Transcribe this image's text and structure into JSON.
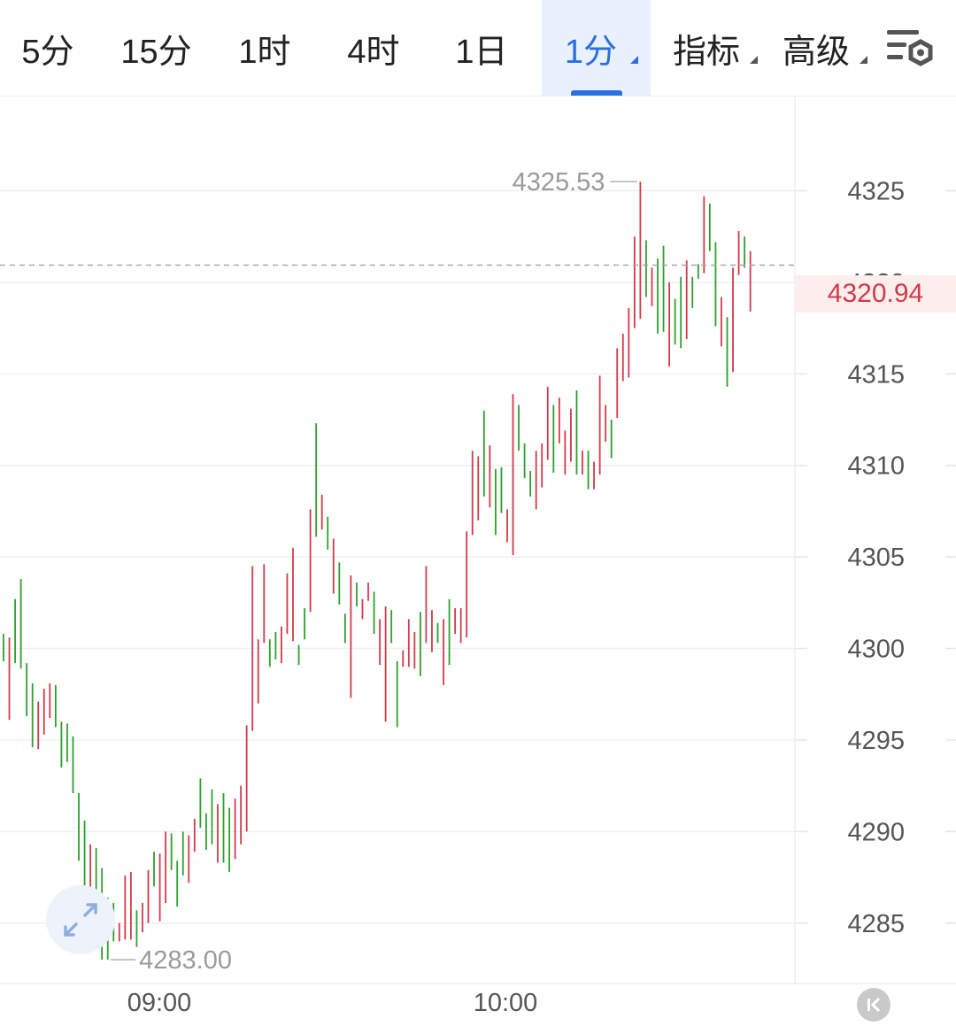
{
  "tabs": [
    {
      "label": "5分",
      "active": false
    },
    {
      "label": "15分",
      "active": false
    },
    {
      "label": "1时",
      "active": false
    },
    {
      "label": "4时",
      "active": false
    },
    {
      "label": "1日",
      "active": false
    },
    {
      "label": "1分",
      "active": true,
      "dropdown": true
    },
    {
      "label": "指标",
      "active": false,
      "dropdown": true
    },
    {
      "label": "高级",
      "active": false,
      "dropdown": true
    }
  ],
  "toolbar": {
    "settings_icon": "chart-settings-icon"
  },
  "colors": {
    "up": "#d23a4a",
    "down": "#2ca02c",
    "accent": "#2b6fe0"
  },
  "chart_data": {
    "type": "ohlc",
    "y_ticks": [
      "4285",
      "4290",
      "4295",
      "4300",
      "4305",
      "4310",
      "4315",
      "4320",
      "4325"
    ],
    "ylim": [
      4281.7,
      4330.2
    ],
    "x_ticks": [
      "09:00",
      "10:00"
    ],
    "current_price": "4320.94",
    "high_label": "4325.53",
    "low_label": "4283.00",
    "grid": true,
    "series": [
      {
        "h": 4300.8,
        "l": 4299.3,
        "up": false
      },
      {
        "h": 4300.6,
        "l": 4296.1,
        "up": true
      },
      {
        "h": 4302.7,
        "l": 4299.2,
        "up": false
      },
      {
        "h": 4303.8,
        "l": 4298.9,
        "up": false
      },
      {
        "h": 4299.2,
        "l": 4296.3,
        "up": false
      },
      {
        "h": 4298.1,
        "l": 4294.6,
        "up": false
      },
      {
        "h": 4297.1,
        "l": 4294.5,
        "up": true
      },
      {
        "h": 4297.8,
        "l": 4295.3,
        "up": true
      },
      {
        "h": 4298.1,
        "l": 4296.2,
        "up": true
      },
      {
        "h": 4298.0,
        "l": 4295.7,
        "up": false
      },
      {
        "h": 4296.0,
        "l": 4293.5,
        "up": false
      },
      {
        "h": 4295.9,
        "l": 4293.8,
        "up": false
      },
      {
        "h": 4295.2,
        "l": 4292.1,
        "up": false
      },
      {
        "h": 4292.1,
        "l": 4288.4,
        "up": false
      },
      {
        "h": 4290.6,
        "l": 4286.9,
        "up": false
      },
      {
        "h": 4289.3,
        "l": 4286.9,
        "up": true
      },
      {
        "h": 4289.1,
        "l": 4286.5,
        "up": false
      },
      {
        "h": 4288.0,
        "l": 4283.0,
        "up": false
      },
      {
        "h": 4286.4,
        "l": 4283.0,
        "up": false
      },
      {
        "h": 4286.1,
        "l": 4284.0,
        "up": false
      },
      {
        "h": 4285.0,
        "l": 4284.0,
        "up": true
      },
      {
        "h": 4287.6,
        "l": 4284.1,
        "up": true
      },
      {
        "h": 4287.8,
        "l": 4284.1,
        "up": true
      },
      {
        "h": 4285.7,
        "l": 4283.7,
        "up": false
      },
      {
        "h": 4286.1,
        "l": 4284.5,
        "up": true
      },
      {
        "h": 4287.9,
        "l": 4285.0,
        "up": true
      },
      {
        "h": 4288.9,
        "l": 4287.0,
        "up": false
      },
      {
        "h": 4288.8,
        "l": 4285.1,
        "up": true
      },
      {
        "h": 4290.0,
        "l": 4286.1,
        "up": true
      },
      {
        "h": 4289.9,
        "l": 4287.9,
        "up": false
      },
      {
        "h": 4288.4,
        "l": 4285.9,
        "up": false
      },
      {
        "h": 4290.0,
        "l": 4287.6,
        "up": false
      },
      {
        "h": 4289.8,
        "l": 4287.2,
        "up": true
      },
      {
        "h": 4290.7,
        "l": 4288.9,
        "up": true
      },
      {
        "h": 4292.9,
        "l": 4290.2,
        "up": false
      },
      {
        "h": 4291.0,
        "l": 4289.0,
        "up": false
      },
      {
        "h": 4292.3,
        "l": 4289.3,
        "up": false
      },
      {
        "h": 4291.5,
        "l": 4288.3,
        "up": true
      },
      {
        "h": 4292.1,
        "l": 4288.3,
        "up": false
      },
      {
        "h": 4291.3,
        "l": 4287.8,
        "up": false
      },
      {
        "h": 4291.8,
        "l": 4288.5,
        "up": true
      },
      {
        "h": 4292.5,
        "l": 4289.3,
        "up": true
      },
      {
        "h": 4295.8,
        "l": 4290.0,
        "up": true
      },
      {
        "h": 4304.5,
        "l": 4295.5,
        "up": true
      },
      {
        "h": 4300.5,
        "l": 4297.0,
        "up": true
      },
      {
        "h": 4304.6,
        "l": 4300.3,
        "up": true
      },
      {
        "h": 4300.5,
        "l": 4299.0,
        "up": false
      },
      {
        "h": 4300.9,
        "l": 4299.4,
        "up": false
      },
      {
        "h": 4301.2,
        "l": 4299.2,
        "up": true
      },
      {
        "h": 4304.1,
        "l": 4300.8,
        "up": true
      },
      {
        "h": 4305.5,
        "l": 4300.4,
        "up": true
      },
      {
        "h": 4300.2,
        "l": 4299.1,
        "up": false
      },
      {
        "h": 4302.2,
        "l": 4300.5,
        "up": false
      },
      {
        "h": 4307.6,
        "l": 4302.0,
        "up": true
      },
      {
        "h": 4312.3,
        "l": 4306.1,
        "up": false
      },
      {
        "h": 4308.4,
        "l": 4306.5,
        "up": true
      },
      {
        "h": 4307.2,
        "l": 4305.4,
        "up": false
      },
      {
        "h": 4306.0,
        "l": 4303.0,
        "up": true
      },
      {
        "h": 4304.7,
        "l": 4302.4,
        "up": false
      },
      {
        "h": 4301.9,
        "l": 4300.3,
        "up": false
      },
      {
        "h": 4304.0,
        "l": 4297.3,
        "up": true
      },
      {
        "h": 4303.6,
        "l": 4302.3,
        "up": false
      },
      {
        "h": 4302.7,
        "l": 4301.6,
        "up": true
      },
      {
        "h": 4303.6,
        "l": 4302.6,
        "up": true
      },
      {
        "h": 4303.1,
        "l": 4300.8,
        "up": false
      },
      {
        "h": 4301.6,
        "l": 4299.1,
        "up": true
      },
      {
        "h": 4302.3,
        "l": 4296.0,
        "up": true
      },
      {
        "h": 4302.1,
        "l": 4300.3,
        "up": false
      },
      {
        "h": 4299.3,
        "l": 4295.7,
        "up": false
      },
      {
        "h": 4299.9,
        "l": 4299.0,
        "up": true
      },
      {
        "h": 4301.6,
        "l": 4299.0,
        "up": true
      },
      {
        "h": 4300.9,
        "l": 4298.9,
        "up": true
      },
      {
        "h": 4302.0,
        "l": 4298.5,
        "up": false
      },
      {
        "h": 4304.5,
        "l": 4300.3,
        "up": true
      },
      {
        "h": 4302.1,
        "l": 4299.8,
        "up": true
      },
      {
        "h": 4301.4,
        "l": 4300.3,
        "up": false
      },
      {
        "h": 4301.6,
        "l": 4298.0,
        "up": true
      },
      {
        "h": 4302.7,
        "l": 4299.1,
        "up": false
      },
      {
        "h": 4302.2,
        "l": 4300.8,
        "up": true
      },
      {
        "h": 4302.2,
        "l": 4300.3,
        "up": true
      },
      {
        "h": 4306.4,
        "l": 4300.6,
        "up": true
      },
      {
        "h": 4310.8,
        "l": 4306.2,
        "up": true
      },
      {
        "h": 4310.5,
        "l": 4307.0,
        "up": true
      },
      {
        "h": 4313.0,
        "l": 4308.3,
        "up": false
      },
      {
        "h": 4311.1,
        "l": 4307.7,
        "up": true
      },
      {
        "h": 4309.8,
        "l": 4306.2,
        "up": false
      },
      {
        "h": 4309.9,
        "l": 4307.4,
        "up": false
      },
      {
        "h": 4307.6,
        "l": 4305.8,
        "up": true
      },
      {
        "h": 4313.9,
        "l": 4305.1,
        "up": true
      },
      {
        "h": 4313.3,
        "l": 4310.8,
        "up": false
      },
      {
        "h": 4311.2,
        "l": 4309.3,
        "up": false
      },
      {
        "h": 4309.7,
        "l": 4308.3,
        "up": false
      },
      {
        "h": 4310.8,
        "l": 4307.6,
        "up": true
      },
      {
        "h": 4311.2,
        "l": 4308.8,
        "up": true
      },
      {
        "h": 4314.3,
        "l": 4310.3,
        "up": true
      },
      {
        "h": 4313.3,
        "l": 4309.6,
        "up": false
      },
      {
        "h": 4313.7,
        "l": 4311.2,
        "up": true
      },
      {
        "h": 4311.9,
        "l": 4309.5,
        "up": true
      },
      {
        "h": 4313.1,
        "l": 4310.2,
        "up": true
      },
      {
        "h": 4314.1,
        "l": 4309.5,
        "up": false
      },
      {
        "h": 4310.8,
        "l": 4309.5,
        "up": true
      },
      {
        "h": 4310.8,
        "l": 4308.7,
        "up": false
      },
      {
        "h": 4310.2,
        "l": 4308.7,
        "up": true
      },
      {
        "h": 4314.9,
        "l": 4309.5,
        "up": true
      },
      {
        "h": 4313.3,
        "l": 4311.3,
        "up": true
      },
      {
        "h": 4312.5,
        "l": 4310.4,
        "up": false
      },
      {
        "h": 4316.4,
        "l": 4312.6,
        "up": true
      },
      {
        "h": 4317.2,
        "l": 4314.6,
        "up": true
      },
      {
        "h": 4318.6,
        "l": 4314.8,
        "up": true
      },
      {
        "h": 4322.5,
        "l": 4317.5,
        "up": true
      },
      {
        "h": 4325.5,
        "l": 4318.0,
        "up": true
      },
      {
        "h": 4322.3,
        "l": 4319.2,
        "up": false
      },
      {
        "h": 4320.8,
        "l": 4318.7,
        "up": true
      },
      {
        "h": 4321.3,
        "l": 4317.2,
        "up": false
      },
      {
        "h": 4322.0,
        "l": 4317.3,
        "up": false
      },
      {
        "h": 4320.0,
        "l": 4315.4,
        "up": true
      },
      {
        "h": 4319.1,
        "l": 4316.6,
        "up": false
      },
      {
        "h": 4320.3,
        "l": 4316.4,
        "up": false
      },
      {
        "h": 4321.2,
        "l": 4316.9,
        "up": true
      },
      {
        "h": 4320.3,
        "l": 4318.6,
        "up": false
      },
      {
        "h": 4321.0,
        "l": 4320.2,
        "up": false
      },
      {
        "h": 4324.7,
        "l": 4320.5,
        "up": true
      },
      {
        "h": 4324.3,
        "l": 4321.7,
        "up": false
      },
      {
        "h": 4322.2,
        "l": 4317.6,
        "up": false
      },
      {
        "h": 4319.2,
        "l": 4316.5,
        "up": true
      },
      {
        "h": 4318.1,
        "l": 4314.3,
        "up": false
      },
      {
        "h": 4320.8,
        "l": 4315.1,
        "up": true
      },
      {
        "h": 4322.8,
        "l": 4320.4,
        "up": true
      },
      {
        "h": 4322.5,
        "l": 4320.8,
        "up": false
      },
      {
        "h": 4321.7,
        "l": 4318.4,
        "up": true
      }
    ]
  }
}
